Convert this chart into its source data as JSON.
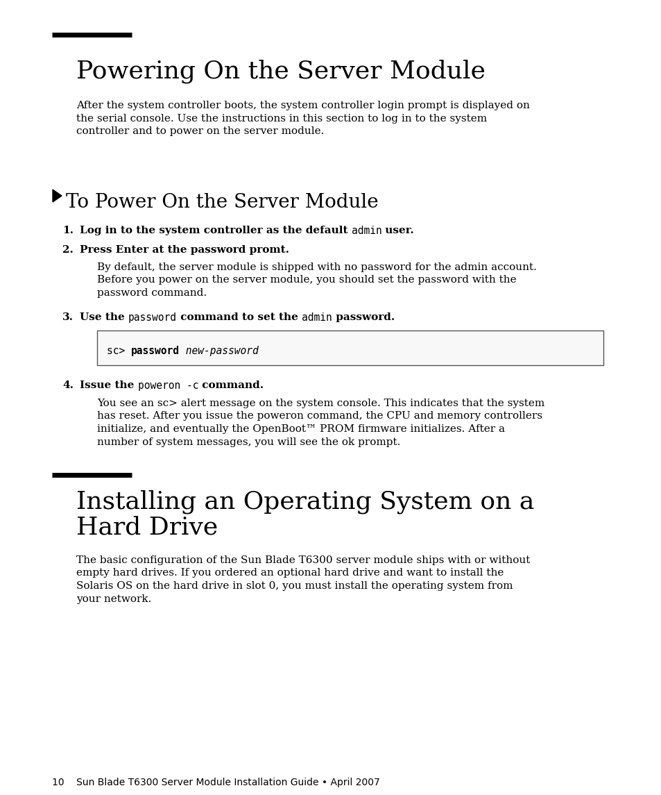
{
  "bg_color": "#ffffff",
  "section1_title": "Powering On the Server Module",
  "section1_intro_lines": [
    "After the system controller boots, the system controller login prompt is displayed on",
    "the serial console. Use the instructions in this section to log in to the system",
    "controller and to power on the server module."
  ],
  "subsection1_title": "To Power On the Server Module",
  "step2_body_lines": [
    "By default, the server module is shipped with no password for the admin account.",
    "Before you power on the server module, you should set the password with the",
    "password command."
  ],
  "step4_body_lines": [
    "You see an sc> alert message on the system console. This indicates that the system",
    "has reset. After you issue the poweron command, the CPU and memory controllers",
    "initialize, and eventually the OpenBoot™ PROM firmware initializes. After a",
    "number of system messages, you will see the ok prompt."
  ],
  "section2_title_line1": "Installing an Operating System on a",
  "section2_title_line2": "Hard Drive",
  "section2_body_lines": [
    "The basic configuration of the Sun Blade T6300 server module ships with or without",
    "empty hard drives. If you ordered an optional hard drive and want to install the",
    "Solaris OS on the hard drive in slot 0, you must install the operating system from",
    "your network."
  ],
  "footer": "10    Sun Blade T6300 Server Module Installation Guide • April 2007"
}
